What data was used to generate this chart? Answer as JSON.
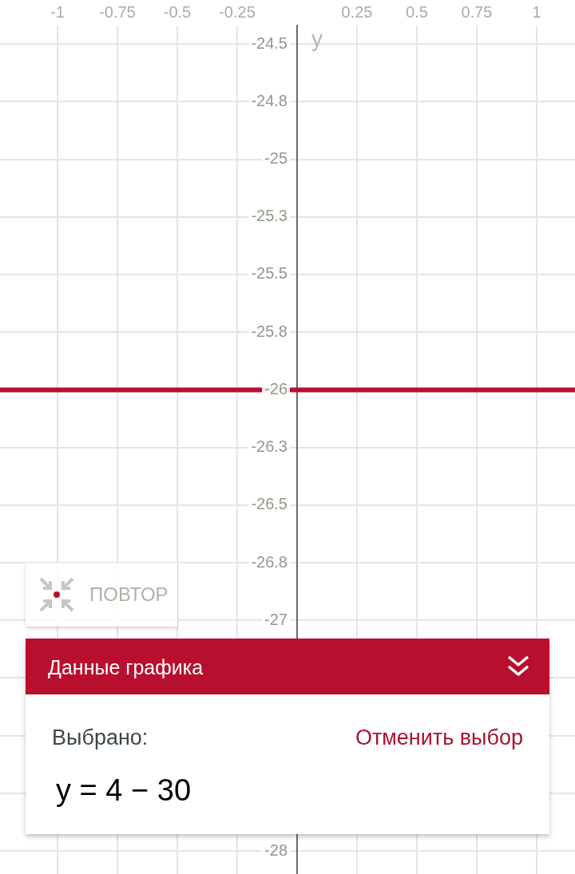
{
  "chart_data": {
    "type": "line",
    "ylabel": "y",
    "annotations": [
      "ПОВТОР",
      "Данные графика",
      "Выбрано:",
      "Отменить выбор",
      "y = 4 − 30"
    ],
    "x": [
      -1.24,
      1.16
    ],
    "series": [
      {
        "color": "#b5102f",
        "values": [
          -26,
          -26
        ]
      }
    ],
    "xlim": [
      -1.24,
      1.16
    ],
    "xticks": [
      -1,
      -0.75,
      -0.5,
      -0.25,
      0.25,
      0.5,
      0.75,
      1
    ],
    "ylim": [
      -28.1,
      -24.42
    ],
    "yticks": [
      -24.5,
      {
        "value": -24.75,
        "label": "-24.8"
      },
      -25,
      {
        "value": -25.25,
        "label": "-25.3"
      },
      -25.5,
      {
        "value": -25.75,
        "label": "-25.8"
      },
      -26,
      {
        "value": -26.25,
        "label": "-26.3"
      },
      -26.5,
      {
        "value": -26.75,
        "label": "-26.8"
      },
      -27,
      {
        "value": -27.25,
        "label": null
      },
      {
        "value": -27.5,
        "label": null
      },
      {
        "value": -27.75,
        "label": null
      },
      -28
    ],
    "grid": true
  }
}
